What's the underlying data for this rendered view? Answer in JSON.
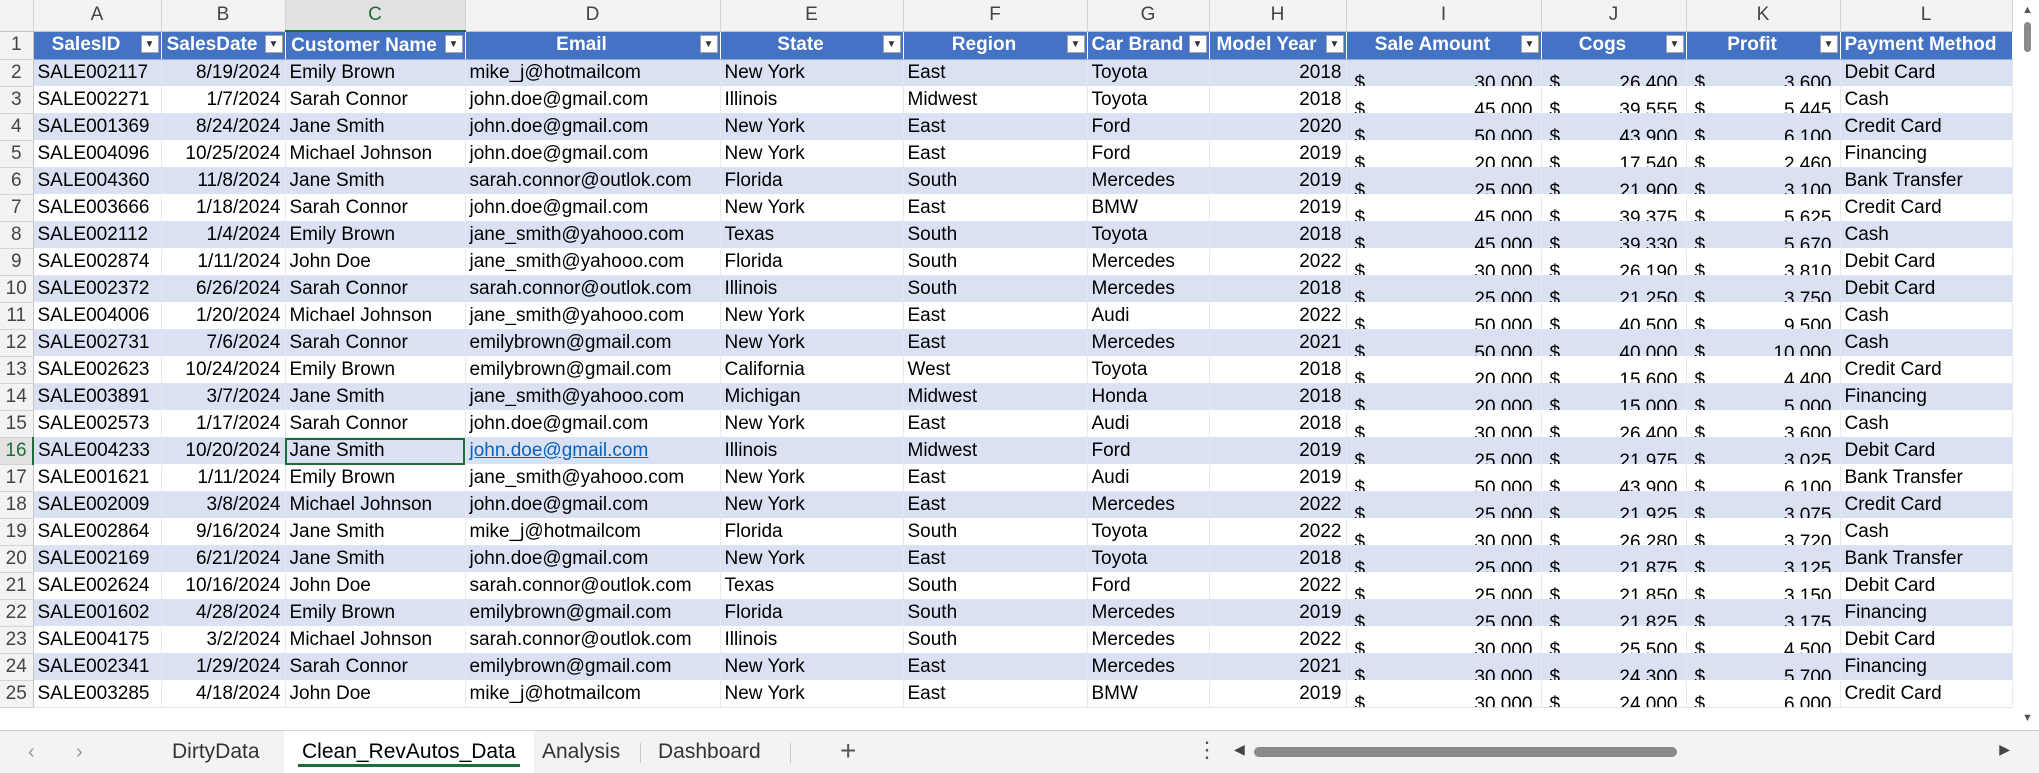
{
  "columns": [
    "A",
    "B",
    "C",
    "D",
    "E",
    "F",
    "G",
    "H",
    "I",
    "J",
    "K",
    "L"
  ],
  "headers": [
    "SalesID",
    "SalesDate",
    "Customer Name",
    "Email",
    "State",
    "Region",
    "Car Brand",
    "Model Year",
    "Sale Amount",
    "Cogs",
    "Profit",
    "Payment Method"
  ],
  "currency_symbol": "$",
  "rows": [
    {
      "n": "2",
      "id": "SALE002117",
      "date": "8/19/2024",
      "name": "Emily Brown",
      "email": "mike_j@hotmailcom",
      "state": "New York",
      "region": "East",
      "brand": "Toyota",
      "year": "2018",
      "sale": "30,000",
      "cogs": "26,400",
      "profit": "3,600",
      "pay": "Debit Card"
    },
    {
      "n": "3",
      "id": "SALE002271",
      "date": "1/7/2024",
      "name": "Sarah Connor",
      "email": "john.doe@gmail.com",
      "state": "Illinois",
      "region": "Midwest",
      "brand": "Toyota",
      "year": "2018",
      "sale": "45,000",
      "cogs": "39,555",
      "profit": "5,445",
      "pay": "Cash"
    },
    {
      "n": "4",
      "id": "SALE001369",
      "date": "8/24/2024",
      "name": "Jane Smith",
      "email": "john.doe@gmail.com",
      "state": "New York",
      "region": "East",
      "brand": "Ford",
      "year": "2020",
      "sale": "50,000",
      "cogs": "43,900",
      "profit": "6,100",
      "pay": "Credit Card"
    },
    {
      "n": "5",
      "id": "SALE004096",
      "date": "10/25/2024",
      "name": "Michael Johnson",
      "email": "john.doe@gmail.com",
      "state": "New York",
      "region": "East",
      "brand": "Ford",
      "year": "2019",
      "sale": "20,000",
      "cogs": "17,540",
      "profit": "2,460",
      "pay": "Financing"
    },
    {
      "n": "6",
      "id": "SALE004360",
      "date": "11/8/2024",
      "name": "Jane Smith",
      "email": "sarah.connor@outlok.com",
      "state": "Florida",
      "region": "South",
      "brand": "Mercedes",
      "year": "2019",
      "sale": "25,000",
      "cogs": "21,900",
      "profit": "3,100",
      "pay": "Bank Transfer"
    },
    {
      "n": "7",
      "id": "SALE003666",
      "date": "1/18/2024",
      "name": "Sarah Connor",
      "email": "john.doe@gmail.com",
      "state": "New York",
      "region": "East",
      "brand": "BMW",
      "year": "2019",
      "sale": "45,000",
      "cogs": "39,375",
      "profit": "5,625",
      "pay": "Credit Card"
    },
    {
      "n": "8",
      "id": "SALE002112",
      "date": "1/4/2024",
      "name": "Emily Brown",
      "email": "jane_smith@yahooo.com",
      "state": "Texas",
      "region": "South",
      "brand": "Toyota",
      "year": "2018",
      "sale": "45,000",
      "cogs": "39,330",
      "profit": "5,670",
      "pay": "Cash"
    },
    {
      "n": "9",
      "id": "SALE002874",
      "date": "1/11/2024",
      "name": "John Doe",
      "email": "jane_smith@yahooo.com",
      "state": "Florida",
      "region": "South",
      "brand": "Mercedes",
      "year": "2022",
      "sale": "30,000",
      "cogs": "26,190",
      "profit": "3,810",
      "pay": "Debit Card"
    },
    {
      "n": "10",
      "id": "SALE002372",
      "date": "6/26/2024",
      "name": "Sarah Connor",
      "email": "sarah.connor@outlok.com",
      "state": "Illinois",
      "region": "South",
      "brand": "Mercedes",
      "year": "2018",
      "sale": "25,000",
      "cogs": "21,250",
      "profit": "3,750",
      "pay": "Debit Card"
    },
    {
      "n": "11",
      "id": "SALE004006",
      "date": "1/20/2024",
      "name": "Michael Johnson",
      "email": "jane_smith@yahooo.com",
      "state": "New York",
      "region": "East",
      "brand": "Audi",
      "year": "2022",
      "sale": "50,000",
      "cogs": "40,500",
      "profit": "9,500",
      "pay": "Cash"
    },
    {
      "n": "12",
      "id": "SALE002731",
      "date": "7/6/2024",
      "name": "Sarah Connor",
      "email": "emilybrown@gmail.com",
      "state": "New York",
      "region": "East",
      "brand": "Mercedes",
      "year": "2021",
      "sale": "50,000",
      "cogs": "40,000",
      "profit": "10,000",
      "pay": "Cash"
    },
    {
      "n": "13",
      "id": "SALE002623",
      "date": "10/24/2024",
      "name": "Emily Brown",
      "email": "emilybrown@gmail.com",
      "state": "California",
      "region": "West",
      "brand": "Toyota",
      "year": "2018",
      "sale": "20,000",
      "cogs": "15,600",
      "profit": "4,400",
      "pay": "Credit Card"
    },
    {
      "n": "14",
      "id": "SALE003891",
      "date": "3/7/2024",
      "name": "Jane Smith",
      "email": "jane_smith@yahooo.com",
      "state": "Michigan",
      "region": "Midwest",
      "brand": "Honda",
      "year": "2018",
      "sale": "20,000",
      "cogs": "15,000",
      "profit": "5,000",
      "pay": "Financing"
    },
    {
      "n": "15",
      "id": "SALE002573",
      "date": "1/17/2024",
      "name": "Sarah Connor",
      "email": "john.doe@gmail.com",
      "state": "New York",
      "region": "East",
      "brand": "Audi",
      "year": "2018",
      "sale": "30,000",
      "cogs": "26,400",
      "profit": "3,600",
      "pay": "Cash"
    },
    {
      "n": "16",
      "id": "SALE004233",
      "date": "10/20/2024",
      "name": "Jane Smith",
      "email": "john.doe@gmail.com",
      "state": "Illinois",
      "region": "Midwest",
      "brand": "Ford",
      "year": "2019",
      "sale": "25,000",
      "cogs": "21,975",
      "profit": "3,025",
      "pay": "Debit Card"
    },
    {
      "n": "17",
      "id": "SALE001621",
      "date": "1/11/2024",
      "name": "Emily Brown",
      "email": "jane_smith@yahooo.com",
      "state": "New York",
      "region": "East",
      "brand": "Audi",
      "year": "2019",
      "sale": "50,000",
      "cogs": "43,900",
      "profit": "6,100",
      "pay": "Bank Transfer"
    },
    {
      "n": "18",
      "id": "SALE002009",
      "date": "3/8/2024",
      "name": "Michael Johnson",
      "email": "john.doe@gmail.com",
      "state": "New York",
      "region": "East",
      "brand": "Mercedes",
      "year": "2022",
      "sale": "25,000",
      "cogs": "21,925",
      "profit": "3,075",
      "pay": "Credit Card"
    },
    {
      "n": "19",
      "id": "SALE002864",
      "date": "9/16/2024",
      "name": "Jane Smith",
      "email": "mike_j@hotmailcom",
      "state": "Florida",
      "region": "South",
      "brand": "Toyota",
      "year": "2022",
      "sale": "30,000",
      "cogs": "26,280",
      "profit": "3,720",
      "pay": "Cash"
    },
    {
      "n": "20",
      "id": "SALE002169",
      "date": "6/21/2024",
      "name": "Jane Smith",
      "email": "john.doe@gmail.com",
      "state": "New York",
      "region": "East",
      "brand": "Toyota",
      "year": "2018",
      "sale": "25,000",
      "cogs": "21,875",
      "profit": "3,125",
      "pay": "Bank Transfer"
    },
    {
      "n": "21",
      "id": "SALE002624",
      "date": "10/16/2024",
      "name": "John Doe",
      "email": "sarah.connor@outlok.com",
      "state": "Texas",
      "region": "South",
      "brand": "Ford",
      "year": "2022",
      "sale": "25,000",
      "cogs": "21,850",
      "profit": "3,150",
      "pay": "Debit Card"
    },
    {
      "n": "22",
      "id": "SALE001602",
      "date": "4/28/2024",
      "name": "Emily Brown",
      "email": "emilybrown@gmail.com",
      "state": "Florida",
      "region": "South",
      "brand": "Mercedes",
      "year": "2019",
      "sale": "25,000",
      "cogs": "21,825",
      "profit": "3,175",
      "pay": "Financing"
    },
    {
      "n": "23",
      "id": "SALE004175",
      "date": "3/2/2024",
      "name": "Michael Johnson",
      "email": "sarah.connor@outlok.com",
      "state": "Illinois",
      "region": "South",
      "brand": "Mercedes",
      "year": "2022",
      "sale": "30,000",
      "cogs": "25,500",
      "profit": "4,500",
      "pay": "Debit Card"
    },
    {
      "n": "24",
      "id": "SALE002341",
      "date": "1/29/2024",
      "name": "Sarah Connor",
      "email": "emilybrown@gmail.com",
      "state": "New York",
      "region": "East",
      "brand": "Mercedes",
      "year": "2021",
      "sale": "30,000",
      "cogs": "24,300",
      "profit": "5,700",
      "pay": "Financing"
    },
    {
      "n": "25",
      "id": "SALE003285",
      "date": "4/18/2024",
      "name": "John Doe",
      "email": "mike_j@hotmailcom",
      "state": "New York",
      "region": "East",
      "brand": "BMW",
      "year": "2019",
      "sale": "30,000",
      "cogs": "24,000",
      "profit": "6,000",
      "pay": "Credit Card"
    }
  ],
  "tabs": [
    "DirtyData",
    "Clean_RevAutos_Data",
    "Analysis",
    "Dashboard"
  ],
  "add_tab_symbol": "+",
  "more_symbol": "⋮"
}
